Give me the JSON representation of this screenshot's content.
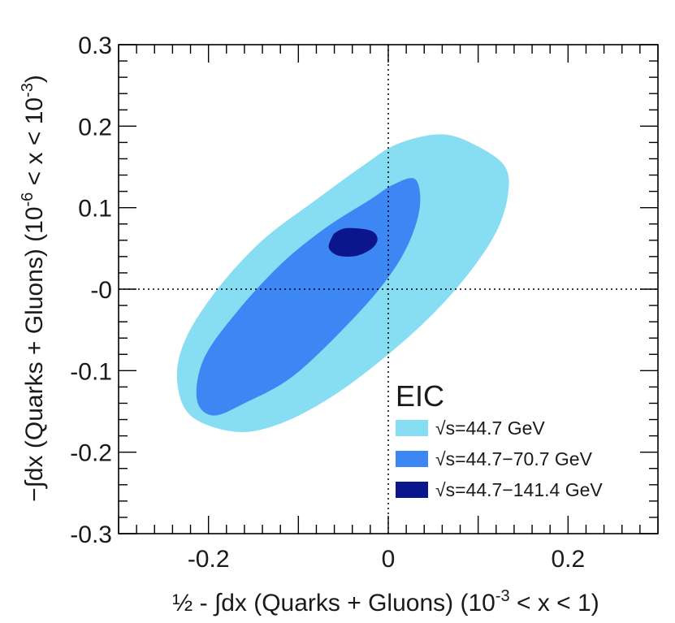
{
  "chart_data": {
    "type": "contour",
    "xlabel_parts": {
      "prefix": "½ - ∫dx (Quarks + Gluons) (10",
      "sup": "-3",
      "suffix": " < x < 1)"
    },
    "ylabel_parts": {
      "prefix": "−∫dx (Quarks + Gluons) (10",
      "sup1": "-6",
      "mid": " < x < 10",
      "sup2": "-3",
      "suffix": ")"
    },
    "xlim": [
      -0.3,
      0.3
    ],
    "ylim": [
      -0.3,
      0.3
    ],
    "x_ticks": [
      {
        "value": -0.2,
        "label": "-0.2"
      },
      {
        "value": 0,
        "label": "0"
      },
      {
        "value": 0.2,
        "label": "0.2"
      }
    ],
    "y_ticks": [
      {
        "value": 0.3,
        "label": "0.3"
      },
      {
        "value": 0.2,
        "label": "0.2"
      },
      {
        "value": 0.1,
        "label": "0.1"
      },
      {
        "value": 0,
        "label": "-0"
      },
      {
        "value": -0.1,
        "label": "-0.1"
      },
      {
        "value": -0.2,
        "label": "-0.2"
      },
      {
        "value": -0.3,
        "label": "-0.3"
      }
    ],
    "reference_lines": {
      "x": 0,
      "y": 0
    },
    "legend": {
      "title": "EIC",
      "position": "bottom-right"
    },
    "series": [
      {
        "name": "√s=44.7 GeV",
        "color": "#87ddf2",
        "outline": [
          [
            0.06,
            0.19
          ],
          [
            0.1,
            0.175
          ],
          [
            0.13,
            0.15
          ],
          [
            0.133,
            0.115
          ],
          [
            0.12,
            0.07
          ],
          [
            0.09,
            0.02
          ],
          [
            0.05,
            -0.03
          ],
          [
            0.0,
            -0.08
          ],
          [
            -0.06,
            -0.13
          ],
          [
            -0.12,
            -0.165
          ],
          [
            -0.17,
            -0.175
          ],
          [
            -0.22,
            -0.155
          ],
          [
            -0.235,
            -0.11
          ],
          [
            -0.225,
            -0.06
          ],
          [
            -0.19,
            0.0
          ],
          [
            -0.14,
            0.06
          ],
          [
            -0.08,
            0.11
          ],
          [
            -0.03,
            0.15
          ],
          [
            0.01,
            0.178
          ]
        ]
      },
      {
        "name": "√s=44.7−70.7 GeV",
        "color": "#3d87f5",
        "outline": [
          [
            0.03,
            0.135
          ],
          [
            0.035,
            0.1
          ],
          [
            0.02,
            0.05
          ],
          [
            -0.01,
            0.0
          ],
          [
            -0.06,
            -0.06
          ],
          [
            -0.11,
            -0.11
          ],
          [
            -0.16,
            -0.14
          ],
          [
            -0.195,
            -0.155
          ],
          [
            -0.213,
            -0.135
          ],
          [
            -0.205,
            -0.085
          ],
          [
            -0.17,
            -0.03
          ],
          [
            -0.12,
            0.03
          ],
          [
            -0.07,
            0.075
          ],
          [
            -0.02,
            0.11
          ],
          [
            0.005,
            0.128
          ]
        ]
      },
      {
        "name": "√s=44.7−141.4 GeV",
        "color": "#0b158c",
        "outline": [
          [
            -0.045,
            0.075
          ],
          [
            -0.02,
            0.072
          ],
          [
            -0.012,
            0.062
          ],
          [
            -0.018,
            0.05
          ],
          [
            -0.035,
            0.041
          ],
          [
            -0.055,
            0.041
          ],
          [
            -0.066,
            0.05
          ],
          [
            -0.063,
            0.063
          ],
          [
            -0.058,
            0.07
          ]
        ]
      }
    ]
  }
}
